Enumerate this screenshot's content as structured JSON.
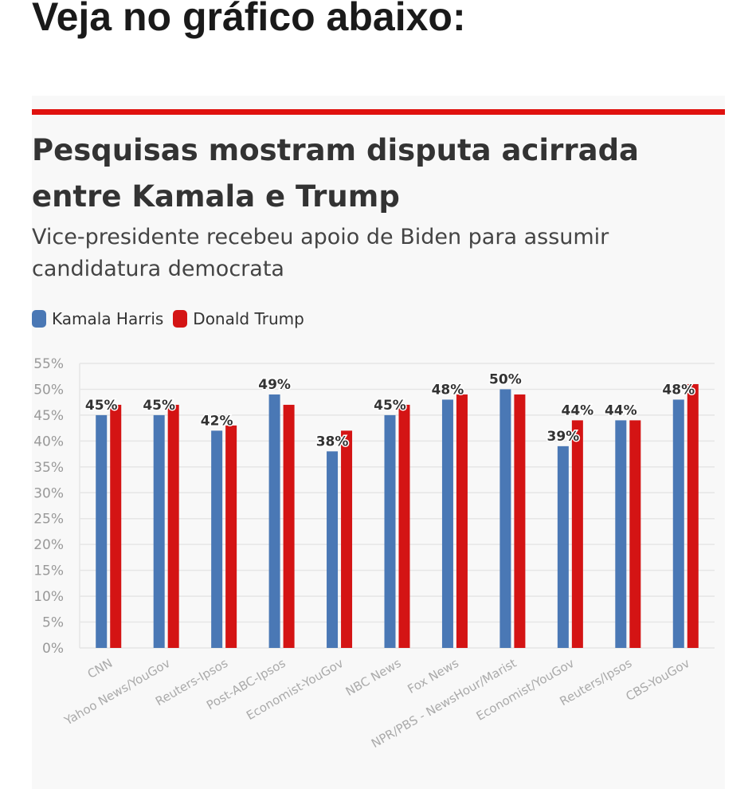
{
  "headline": "Veja no gráfico abaixo:",
  "chart_data": {
    "type": "bar",
    "title": "Pesquisas mostram disputa acirrada entre Kamala e Trump",
    "subtitle": "Vice-presidente recebeu apoio de Biden para assumir candidatura democrata",
    "legend_position": "top-left",
    "ylim": [
      0,
      55
    ],
    "yticks": [
      "0%",
      "5%",
      "10%",
      "15%",
      "20%",
      "25%",
      "30%",
      "35%",
      "40%",
      "45%",
      "50%",
      "55%"
    ],
    "categories": [
      "CNN",
      "Yahoo News/YouGov",
      "Reuters-Ipsos",
      "Post-ABC-Ipsos",
      "Economist-YouGov",
      "NBC News",
      "Fox News",
      "NPR/PBS - NewsHour/Marist",
      "Economist/YouGov",
      "Reuters/Ipsos",
      "CBS-YouGov"
    ],
    "series": [
      {
        "name": "Kamala Harris",
        "color": "#4a78b5",
        "values": [
          45,
          45,
          42,
          49,
          38,
          45,
          48,
          50,
          39,
          44,
          48
        ],
        "labels": [
          "45%",
          "45%",
          "42%",
          "49%",
          "38%",
          "45%",
          "48%",
          "50%",
          "39%",
          "44%",
          "48%"
        ]
      },
      {
        "name": "Donald Trump",
        "color": "#d41414",
        "values": [
          47,
          47,
          43,
          47,
          42,
          47,
          49,
          49,
          44,
          44,
          51
        ],
        "labels": [
          null,
          null,
          null,
          null,
          null,
          null,
          null,
          null,
          "44%",
          null,
          null
        ]
      }
    ],
    "grid": true
  }
}
